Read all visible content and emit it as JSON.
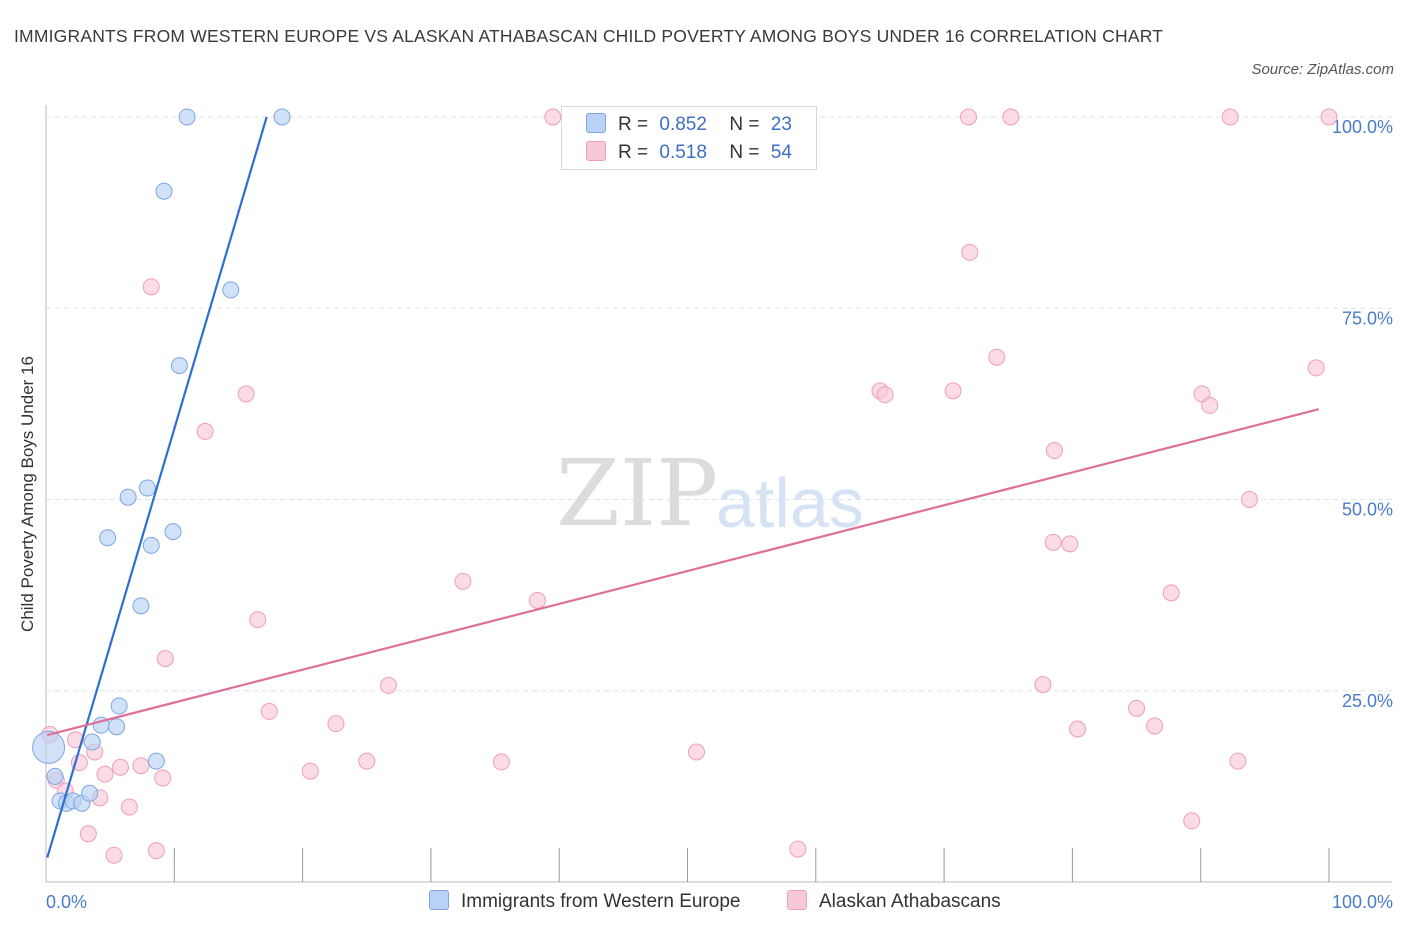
{
  "title": "IMMIGRANTS FROM WESTERN EUROPE VS ALASKAN ATHABASCAN CHILD POVERTY AMONG BOYS UNDER 16 CORRELATION CHART",
  "source": "Source: ZipAtlas.com",
  "watermark": {
    "zip": "ZIP",
    "atlas": "atlas"
  },
  "colors": {
    "blue_fill": "#b9d2f5",
    "blue_stroke": "#7ea6e0",
    "blue_line": "#2e6fd0",
    "pink_fill": "#f9c8d8",
    "pink_stroke": "#ee9fb9",
    "pink_line": "#e06f98",
    "grid": "#dde3ea",
    "tick": "#4a7cc7"
  },
  "legend": {
    "r_label": "R =",
    "n_label": "N =",
    "series1": {
      "r": "0.852",
      "n": "23"
    },
    "series2": {
      "r": "0.518",
      "n": "54"
    }
  },
  "chart_data": {
    "type": "scatter",
    "title": "IMMIGRANTS FROM WESTERN EUROPE VS ALASKAN ATHABASCAN CHILD POVERTY AMONG BOYS UNDER 16 CORRELATION CHART",
    "xlabel": "",
    "ylabel": "Child Poverty Among Boys Under 16",
    "xlim": [
      0,
      100
    ],
    "ylim": [
      0,
      100
    ],
    "x_tick_labels": {
      "left": "0.0%",
      "right": "100.0%"
    },
    "y_ticks": [
      {
        "value": 25,
        "label": "25.0%"
      },
      {
        "value": 50,
        "label": "50.0%"
      },
      {
        "value": 75,
        "label": "75.0%"
      },
      {
        "value": 100,
        "label": "100.0%"
      }
    ],
    "grid": true,
    "series": [
      {
        "name": "Immigrants from Western Europe",
        "color": "#b9d2f5",
        "r": 0.852,
        "n": 23,
        "trend": {
          "x0": 0.1,
          "y0": 3.2,
          "x1": 17.2,
          "y1": 100
        },
        "points": [
          {
            "x": 0.2,
            "y": 17.6,
            "big": true
          },
          {
            "x": 0.7,
            "y": 13.8
          },
          {
            "x": 1.1,
            "y": 10.6
          },
          {
            "x": 1.6,
            "y": 10.3
          },
          {
            "x": 2.1,
            "y": 10.6
          },
          {
            "x": 2.8,
            "y": 10.3
          },
          {
            "x": 3.4,
            "y": 11.6
          },
          {
            "x": 3.6,
            "y": 18.3
          },
          {
            "x": 4.3,
            "y": 20.5
          },
          {
            "x": 5.5,
            "y": 20.3
          },
          {
            "x": 5.7,
            "y": 23.0
          },
          {
            "x": 4.8,
            "y": 45.0
          },
          {
            "x": 6.4,
            "y": 50.3
          },
          {
            "x": 7.4,
            "y": 36.1
          },
          {
            "x": 7.9,
            "y": 51.5
          },
          {
            "x": 8.2,
            "y": 44.0
          },
          {
            "x": 8.6,
            "y": 15.8
          },
          {
            "x": 9.9,
            "y": 45.8
          },
          {
            "x": 9.2,
            "y": 90.3
          },
          {
            "x": 10.4,
            "y": 67.5
          },
          {
            "x": 11.0,
            "y": 100
          },
          {
            "x": 14.4,
            "y": 77.4
          },
          {
            "x": 18.4,
            "y": 100
          }
        ]
      },
      {
        "name": "Alaskan Athabascans",
        "color": "#f9c8d8",
        "r": 0.518,
        "n": 54,
        "trend": {
          "x0": 0.1,
          "y0": 19.2,
          "x1": 99.2,
          "y1": 61.8
        },
        "points": [
          {
            "x": 0.3,
            "y": 19.3
          },
          {
            "x": 0.8,
            "y": 13.3
          },
          {
            "x": 1.5,
            "y": 11.9
          },
          {
            "x": 2.3,
            "y": 18.6
          },
          {
            "x": 2.6,
            "y": 15.6
          },
          {
            "x": 3.3,
            "y": 6.3
          },
          {
            "x": 3.8,
            "y": 17.0
          },
          {
            "x": 4.2,
            "y": 11.0
          },
          {
            "x": 4.6,
            "y": 14.1
          },
          {
            "x": 5.3,
            "y": 3.5
          },
          {
            "x": 5.8,
            "y": 15.0
          },
          {
            "x": 6.5,
            "y": 9.8
          },
          {
            "x": 7.4,
            "y": 15.2
          },
          {
            "x": 8.2,
            "y": 77.8
          },
          {
            "x": 8.6,
            "y": 4.1
          },
          {
            "x": 9.1,
            "y": 13.6
          },
          {
            "x": 9.3,
            "y": 29.2
          },
          {
            "x": 12.4,
            "y": 58.9
          },
          {
            "x": 15.6,
            "y": 63.8
          },
          {
            "x": 16.5,
            "y": 34.3
          },
          {
            "x": 17.4,
            "y": 22.3
          },
          {
            "x": 20.6,
            "y": 14.5
          },
          {
            "x": 22.6,
            "y": 20.7
          },
          {
            "x": 25.0,
            "y": 15.8
          },
          {
            "x": 26.7,
            "y": 25.7
          },
          {
            "x": 32.5,
            "y": 39.3
          },
          {
            "x": 35.5,
            "y": 15.7
          },
          {
            "x": 38.3,
            "y": 36.8
          },
          {
            "x": 39.5,
            "y": 100
          },
          {
            "x": 50.7,
            "y": 17.0
          },
          {
            "x": 58.6,
            "y": 4.3
          },
          {
            "x": 65.0,
            "y": 64.2
          },
          {
            "x": 65.4,
            "y": 63.7
          },
          {
            "x": 70.7,
            "y": 64.2
          },
          {
            "x": 71.9,
            "y": 100
          },
          {
            "x": 72.0,
            "y": 82.3
          },
          {
            "x": 74.1,
            "y": 68.6
          },
          {
            "x": 75.2,
            "y": 100
          },
          {
            "x": 77.7,
            "y": 25.8
          },
          {
            "x": 78.5,
            "y": 44.4
          },
          {
            "x": 78.6,
            "y": 56.4
          },
          {
            "x": 79.8,
            "y": 44.2
          },
          {
            "x": 80.4,
            "y": 20.0
          },
          {
            "x": 85.0,
            "y": 22.7
          },
          {
            "x": 86.4,
            "y": 20.4
          },
          {
            "x": 87.7,
            "y": 37.8
          },
          {
            "x": 89.3,
            "y": 8.0
          },
          {
            "x": 90.1,
            "y": 63.8
          },
          {
            "x": 90.7,
            "y": 62.3
          },
          {
            "x": 92.3,
            "y": 100
          },
          {
            "x": 92.9,
            "y": 15.8
          },
          {
            "x": 93.8,
            "y": 50.0
          },
          {
            "x": 99.0,
            "y": 67.2
          },
          {
            "x": 100.0,
            "y": 100
          }
        ]
      }
    ]
  }
}
